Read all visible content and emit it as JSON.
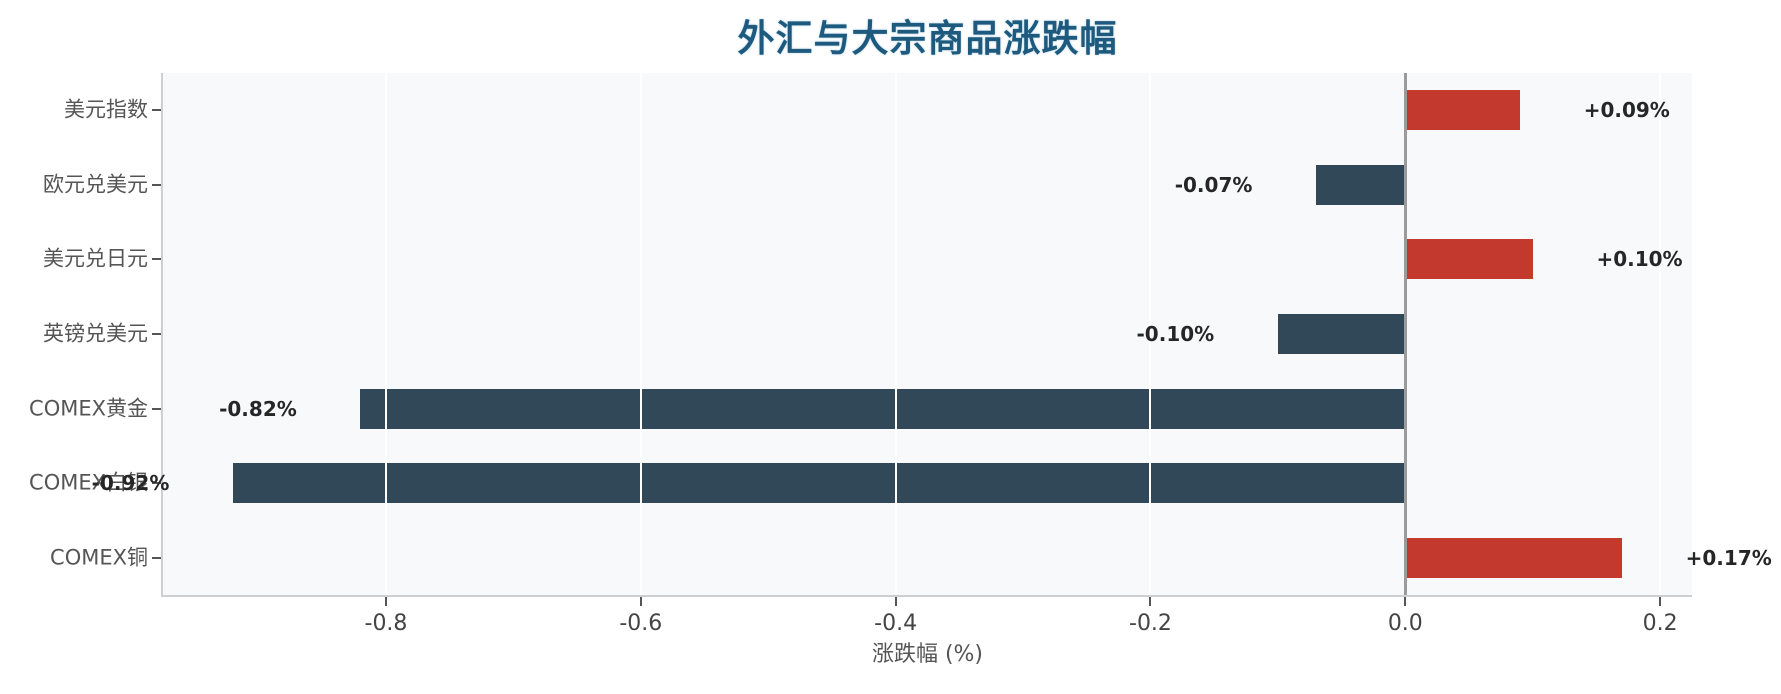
{
  "chart_data": {
    "type": "bar",
    "orientation": "horizontal",
    "title": "外汇与大宗商品涨跌幅",
    "xlabel": "涨跌幅 (%)",
    "categories": [
      "美元指数",
      "欧元兑美元",
      "美元兑日元",
      "英镑兑美元",
      "COMEX黄金",
      "COMEX白银",
      "COMEX铜"
    ],
    "values": [
      0.09,
      -0.07,
      0.1,
      -0.1,
      -0.82,
      -0.92,
      0.17
    ],
    "value_labels": [
      "+0.09%",
      "-0.07%",
      "+0.10%",
      "-0.10%",
      "-0.82%",
      "-0.92%",
      "+0.17%"
    ],
    "xlim": [
      -0.975,
      0.225
    ],
    "xticks": [
      -0.8,
      -0.6,
      -0.4,
      -0.2,
      0.0,
      0.2
    ],
    "xtick_labels": [
      "-0.8",
      "-0.6",
      "-0.4",
      "-0.2",
      "0.0",
      "0.2"
    ],
    "value_label_offset": 0.05,
    "grid": true,
    "legend": false,
    "colors": {
      "positive_bar": "#c3392e",
      "negative_bar": "#304858",
      "title": "#1e5a7d",
      "plot_background": "#f8f9fb",
      "gridline": "#ffffff",
      "zero_line": "#9b9b9b",
      "spine": "#cfcfcf",
      "tick_mark": "#555555",
      "xtick_label": "#444444",
      "category_label": "#555555",
      "value_label": "#262626"
    }
  }
}
